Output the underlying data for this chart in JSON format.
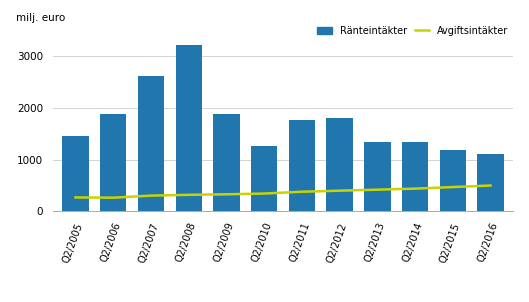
{
  "categories": [
    "Q2/2005",
    "Q2/2006",
    "Q2/2007",
    "Q2/2008",
    "Q2/2009",
    "Q2/2010",
    "Q2/2011",
    "Q2/2012",
    "Q2/2013",
    "Q2/2014",
    "Q2/2015",
    "Q2/2016"
  ],
  "bar_values": [
    1450,
    1880,
    2620,
    3220,
    1880,
    1270,
    1760,
    1800,
    1340,
    1350,
    1190,
    1100
  ],
  "line_values": [
    270,
    265,
    305,
    320,
    330,
    345,
    380,
    400,
    420,
    440,
    470,
    500
  ],
  "bar_color": "#2176ae",
  "line_color": "#c8d400",
  "ylabel": "milj. euro",
  "ylim": [
    0,
    3500
  ],
  "yticks": [
    0,
    1000,
    2000,
    3000
  ],
  "legend_bar_label": "Ränteintäkter",
  "legend_line_label": "Avgiftsintäkter",
  "background_color": "#ffffff",
  "grid_color": "#cccccc"
}
